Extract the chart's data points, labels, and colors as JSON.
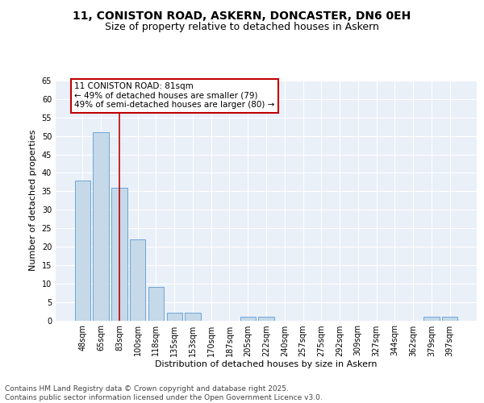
{
  "title_line1": "11, CONISTON ROAD, ASKERN, DONCASTER, DN6 0EH",
  "title_line2": "Size of property relative to detached houses in Askern",
  "xlabel": "Distribution of detached houses by size in Askern",
  "ylabel": "Number of detached properties",
  "categories": [
    "48sqm",
    "65sqm",
    "83sqm",
    "100sqm",
    "118sqm",
    "135sqm",
    "153sqm",
    "170sqm",
    "187sqm",
    "205sqm",
    "222sqm",
    "240sqm",
    "257sqm",
    "275sqm",
    "292sqm",
    "309sqm",
    "327sqm",
    "344sqm",
    "362sqm",
    "379sqm",
    "397sqm"
  ],
  "values": [
    38,
    51,
    36,
    22,
    9,
    2,
    2,
    0,
    0,
    1,
    1,
    0,
    0,
    0,
    0,
    0,
    0,
    0,
    0,
    1,
    1
  ],
  "bar_color": "#c5d9e8",
  "bar_edge_color": "#5b9bd5",
  "vline_x": 2,
  "vline_color": "#c00000",
  "annotation_text": "11 CONISTON ROAD: 81sqm\n← 49% of detached houses are smaller (79)\n49% of semi-detached houses are larger (80) →",
  "annotation_box_color": "#ffffff",
  "annotation_box_edge": "#c00000",
  "ylim": [
    0,
    65
  ],
  "yticks": [
    0,
    5,
    10,
    15,
    20,
    25,
    30,
    35,
    40,
    45,
    50,
    55,
    60,
    65
  ],
  "bg_color": "#eaf0f8",
  "grid_color": "#ffffff",
  "footer_text": "Contains HM Land Registry data © Crown copyright and database right 2025.\nContains public sector information licensed under the Open Government Licence v3.0.",
  "title_fontsize": 10,
  "subtitle_fontsize": 9,
  "axis_label_fontsize": 8,
  "tick_fontsize": 7,
  "annotation_fontsize": 7.5,
  "footer_fontsize": 6.5
}
